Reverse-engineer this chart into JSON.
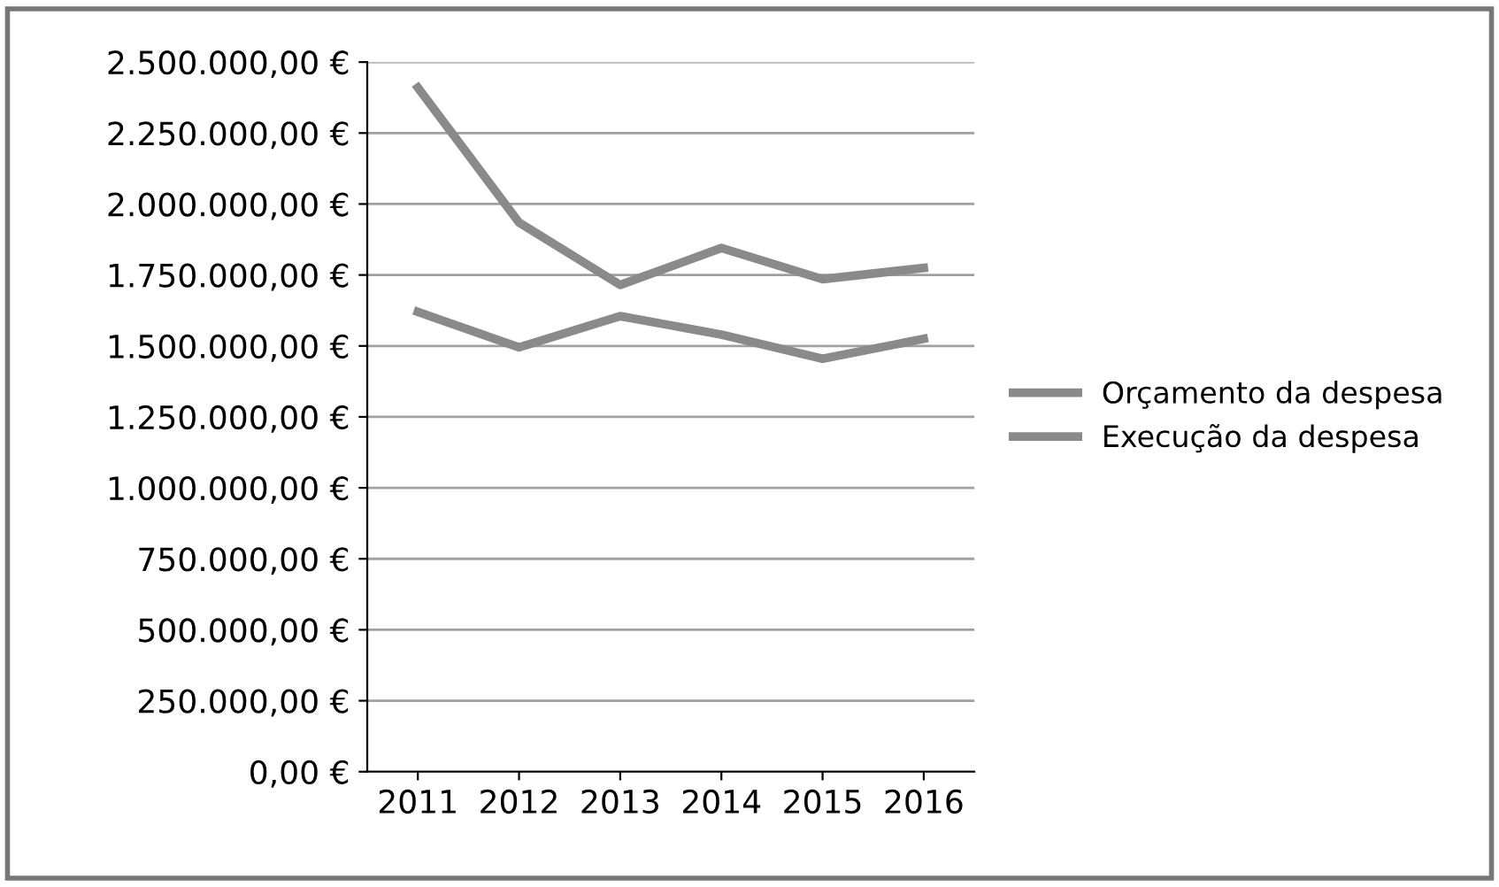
{
  "chart_data": {
    "type": "line",
    "categories": [
      "2011",
      "2012",
      "2013",
      "2014",
      "2015",
      "2016"
    ],
    "series": [
      {
        "name": "Orçamento da despesa",
        "color": "#8a8a8a",
        "values": [
          2410000,
          1935000,
          1715000,
          1845000,
          1735000,
          1775000
        ]
      },
      {
        "name": "Execução da despesa",
        "color": "#8a8a8a",
        "values": [
          1620000,
          1495000,
          1605000,
          1540000,
          1455000,
          1525000
        ]
      }
    ],
    "ylim": [
      0,
      2500000
    ],
    "yticks": [
      {
        "value": 0,
        "label": "0,00 €"
      },
      {
        "value": 250000,
        "label": "250.000,00 €"
      },
      {
        "value": 500000,
        "label": "500.000,00 €"
      },
      {
        "value": 750000,
        "label": "750.000,00 €"
      },
      {
        "value": 1000000,
        "label": "1.000.000,00 €"
      },
      {
        "value": 1250000,
        "label": "1.250.000,00 €"
      },
      {
        "value": 1500000,
        "label": "1.500.000,00 €"
      },
      {
        "value": 1750000,
        "label": "1.750.000,00 €"
      },
      {
        "value": 2000000,
        "label": "2.000.000,00 €"
      },
      {
        "value": 2250000,
        "label": "2.250.000,00 €"
      },
      {
        "value": 2500000,
        "label": "2.500.000,00 €"
      }
    ],
    "grid": "y",
    "legend": "right",
    "marker": "none",
    "line_style": "solid"
  }
}
